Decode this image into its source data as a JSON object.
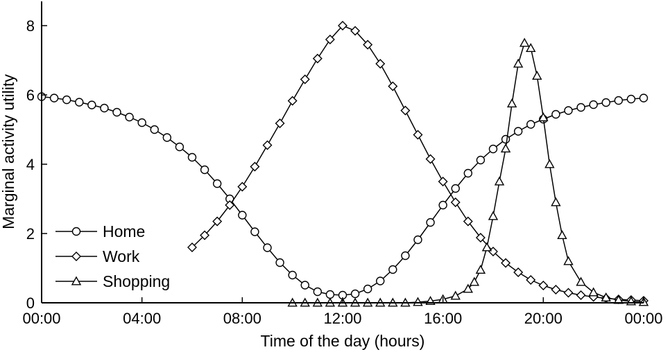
{
  "chart_data": {
    "type": "line",
    "title": "",
    "xlabel": "Time of the day (hours)",
    "ylabel": "Marginal activity utility",
    "x_unit": "hours",
    "xlim": [
      0,
      24
    ],
    "ylim": [
      0,
      8.7
    ],
    "x_ticks": [
      {
        "value": 0,
        "label": "00:00"
      },
      {
        "value": 4,
        "label": "04:00"
      },
      {
        "value": 8,
        "label": "08:00"
      },
      {
        "value": 12,
        "label": "12:00"
      },
      {
        "value": 16,
        "label": "16:00"
      },
      {
        "value": 20,
        "label": "20:00"
      },
      {
        "value": 24,
        "label": "00:00"
      }
    ],
    "y_ticks": [
      {
        "value": 0,
        "label": "0"
      },
      {
        "value": 2,
        "label": "2"
      },
      {
        "value": 4,
        "label": "4"
      },
      {
        "value": 6,
        "label": "6"
      },
      {
        "value": 8,
        "label": "8"
      }
    ],
    "grid": false,
    "legend": {
      "placement": "bottom-left"
    },
    "series": [
      {
        "name": "Home",
        "marker": "circle",
        "color": "#000000",
        "x": [
          0,
          0.5,
          1,
          1.5,
          2,
          2.5,
          3,
          3.5,
          4,
          4.5,
          5,
          5.5,
          6,
          6.5,
          7,
          7.5,
          8,
          8.5,
          9,
          9.5,
          10,
          10.5,
          11,
          11.5,
          12,
          12.5,
          13,
          13.5,
          14,
          14.5,
          15,
          15.5,
          16,
          16.5,
          17,
          17.5,
          18,
          18.5,
          19,
          19.5,
          20,
          20.5,
          21,
          21.5,
          22,
          22.5,
          23,
          23.5,
          24
        ],
        "y": [
          5.95,
          5.91,
          5.86,
          5.79,
          5.71,
          5.62,
          5.5,
          5.36,
          5.2,
          5.0,
          4.77,
          4.5,
          4.2,
          3.84,
          3.44,
          3.0,
          2.53,
          2.05,
          1.59,
          1.16,
          0.8,
          0.51,
          0.32,
          0.24,
          0.22,
          0.26,
          0.4,
          0.63,
          0.96,
          1.36,
          1.82,
          2.32,
          2.82,
          3.3,
          3.74,
          4.12,
          4.44,
          4.72,
          4.95,
          5.15,
          5.3,
          5.44,
          5.55,
          5.64,
          5.72,
          5.78,
          5.84,
          5.88,
          5.91
        ]
      },
      {
        "name": "Work",
        "marker": "diamond",
        "color": "#000000",
        "x": [
          6,
          6.5,
          7,
          7.5,
          8,
          8.5,
          9,
          9.5,
          10,
          10.5,
          11,
          11.5,
          12,
          12.5,
          13,
          13.5,
          14,
          14.5,
          15,
          15.5,
          16,
          16.5,
          17,
          17.5,
          18,
          18.5,
          19,
          19.5,
          20,
          20.5,
          21,
          21.5,
          22,
          22.5,
          23,
          23.5,
          24
        ],
        "y": [
          1.6,
          1.95,
          2.35,
          2.82,
          3.35,
          3.93,
          4.55,
          5.18,
          5.83,
          6.45,
          7.05,
          7.6,
          8.0,
          7.85,
          7.45,
          6.9,
          6.25,
          5.55,
          4.85,
          4.15,
          3.5,
          2.9,
          2.35,
          1.88,
          1.48,
          1.15,
          0.88,
          0.66,
          0.5,
          0.38,
          0.29,
          0.22,
          0.17,
          0.13,
          0.1,
          0.08,
          0.06
        ]
      },
      {
        "name": "Shopping",
        "marker": "triangle",
        "color": "#000000",
        "x": [
          10,
          10.5,
          11,
          11.5,
          12,
          12.5,
          13,
          13.5,
          14,
          14.5,
          15,
          15.5,
          16,
          16.5,
          17,
          17.25,
          17.5,
          17.75,
          18,
          18.25,
          18.5,
          18.75,
          19,
          19.25,
          19.5,
          19.75,
          20,
          20.25,
          20.5,
          20.75,
          21,
          21.5,
          22,
          22.5,
          23,
          23.5,
          24
        ],
        "y": [
          0,
          0,
          0,
          0,
          0,
          0,
          0,
          0,
          0,
          0,
          0.02,
          0.05,
          0.1,
          0.2,
          0.4,
          0.6,
          0.95,
          1.6,
          2.5,
          3.5,
          4.45,
          5.75,
          6.9,
          7.5,
          7.35,
          6.55,
          5.35,
          4.0,
          2.9,
          1.95,
          1.2,
          0.6,
          0.3,
          0.15,
          0.08,
          0.04,
          0.02
        ]
      }
    ]
  }
}
